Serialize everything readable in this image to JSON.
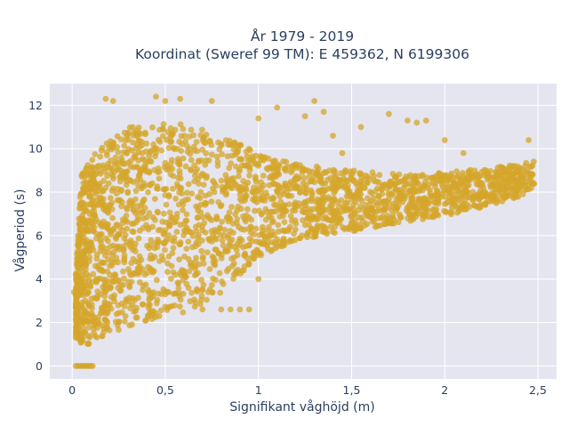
{
  "chart_data": {
    "type": "scatter",
    "title_line1": "År 1979 - 2019",
    "title_line2": "Koordinat (Sweref 99 TM): E 459362, N 6199306",
    "xlabel": "Signifikant våghöjd (m)",
    "ylabel": "Vågperiod (s)",
    "xlim": [
      -0.12,
      2.6
    ],
    "ylim": [
      -0.6,
      13
    ],
    "x_ticks": [
      0,
      0.5,
      1,
      1.5,
      2,
      2.5
    ],
    "x_tick_labels": [
      "0",
      "0,5",
      "1",
      "1,5",
      "2",
      "2,5"
    ],
    "y_ticks": [
      0,
      2,
      4,
      6,
      8,
      10,
      12
    ],
    "y_tick_labels": [
      "0",
      "2",
      "4",
      "6",
      "8",
      "10",
      "12"
    ],
    "grid": true,
    "colors": {
      "marker": "#d4a62a",
      "plot_background": "#e5e5f0",
      "grid": "#ffffff"
    },
    "marker_opacity": 0.75,
    "point_count": 2600,
    "density_envelope": {
      "x": [
        0.02,
        0.05,
        0.1,
        0.2,
        0.3,
        0.5,
        0.7,
        0.9,
        1.0,
        1.2,
        1.5,
        1.8,
        2.0,
        2.2,
        2.4,
        2.48
      ],
      "y_min": [
        1.4,
        1.0,
        1.0,
        1.5,
        1.8,
        2.3,
        2.6,
        4.2,
        5.0,
        5.8,
        6.2,
        6.6,
        6.9,
        7.3,
        7.8,
        8.2
      ],
      "y_max": [
        4.2,
        9.0,
        9.6,
        10.4,
        11.0,
        11.3,
        10.9,
        10.2,
        9.8,
        9.3,
        9.0,
        8.8,
        8.9,
        9.1,
        9.3,
        9.5
      ]
    },
    "zero_period_points": {
      "y": 0,
      "x": [
        0.02,
        0.03,
        0.04,
        0.05,
        0.06,
        0.07,
        0.08,
        0.09,
        0.1,
        0.11
      ]
    },
    "outlier_points": [
      {
        "x": 0.18,
        "y": 12.3
      },
      {
        "x": 0.22,
        "y": 12.2
      },
      {
        "x": 0.45,
        "y": 12.4
      },
      {
        "x": 0.5,
        "y": 12.2
      },
      {
        "x": 0.58,
        "y": 12.3
      },
      {
        "x": 0.75,
        "y": 12.2
      },
      {
        "x": 1.0,
        "y": 11.4
      },
      {
        "x": 1.1,
        "y": 11.9
      },
      {
        "x": 1.3,
        "y": 12.2
      },
      {
        "x": 1.25,
        "y": 11.5
      },
      {
        "x": 1.35,
        "y": 11.7
      },
      {
        "x": 1.4,
        "y": 10.6
      },
      {
        "x": 1.45,
        "y": 9.8
      },
      {
        "x": 1.55,
        "y": 11.0
      },
      {
        "x": 1.7,
        "y": 11.6
      },
      {
        "x": 1.8,
        "y": 11.3
      },
      {
        "x": 1.85,
        "y": 11.2
      },
      {
        "x": 1.9,
        "y": 11.3
      },
      {
        "x": 2.0,
        "y": 10.4
      },
      {
        "x": 2.1,
        "y": 9.8
      },
      {
        "x": 2.45,
        "y": 10.4
      },
      {
        "x": 0.7,
        "y": 2.6
      },
      {
        "x": 0.8,
        "y": 2.6
      },
      {
        "x": 0.85,
        "y": 2.6
      },
      {
        "x": 0.9,
        "y": 2.6
      },
      {
        "x": 0.95,
        "y": 2.6
      },
      {
        "x": 1.0,
        "y": 4.0
      },
      {
        "x": 0.02,
        "y": 1.3
      },
      {
        "x": 0.01,
        "y": 3.4
      },
      {
        "x": 0.02,
        "y": 4.2
      }
    ]
  }
}
